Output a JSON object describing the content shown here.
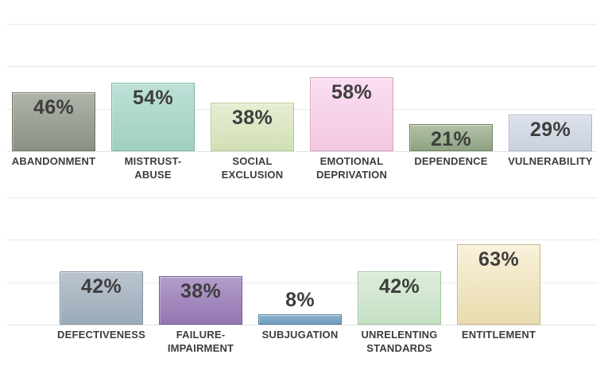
{
  "page": {
    "background_color": "#ffffff",
    "gridline_color": "#e9e9e9",
    "value_label_color": "#3e3e3e",
    "category_label_color": "#3c3c3c"
  },
  "chart_data": [
    {
      "type": "bar",
      "title": "",
      "xlabel": "",
      "ylabel": "",
      "ylim": [
        0,
        100
      ],
      "grid": true,
      "gridlines_pct": [
        100,
        66.7,
        33.3,
        0
      ],
      "legend": null,
      "categories": [
        "ABANDONMENT",
        "MISTRUST-\nABUSE",
        "SOCIAL\nEXCLUSION",
        "EMOTIONAL\nDEPRIVATION",
        "DEPENDENCE",
        "VULNERABILITY"
      ],
      "values": [
        46,
        54,
        38,
        58,
        21,
        29
      ],
      "value_labels": [
        "46%",
        "54%",
        "38%",
        "58%",
        "21%",
        "29%"
      ],
      "bar_colors": [
        {
          "top": "#aeb4a8",
          "bottom": "#899084",
          "border": "#71776b"
        },
        {
          "top": "#bee1d8",
          "bottom": "#9fcfc0",
          "border": "#7db4a5"
        },
        {
          "top": "#e5eed3",
          "bottom": "#d2e0b6",
          "border": "#b5ca92"
        },
        {
          "top": "#fbdef1",
          "bottom": "#f1c8e0",
          "border": "#d5a3c3"
        },
        {
          "top": "#b3c1a6",
          "bottom": "#8fa283",
          "border": "#6d8361"
        },
        {
          "top": "#dde2eb",
          "bottom": "#c8d1df",
          "border": "#a9b5ca"
        }
      ]
    },
    {
      "type": "bar",
      "title": "",
      "xlabel": "",
      "ylabel": "",
      "ylim": [
        0,
        100
      ],
      "grid": true,
      "gridlines_pct": [
        100,
        66.7,
        33.3,
        0
      ],
      "legend": null,
      "categories": [
        "DEFECTIVENESS",
        "FAILURE-\nIMPAIRMENT",
        "SUBJUGATION",
        "UNRELENTING\nSTANDARDS",
        "ENTITLEMENT"
      ],
      "values": [
        42,
        38,
        8,
        42,
        63
      ],
      "value_labels": [
        "42%",
        "38%",
        "8%",
        "42%",
        "63%"
      ],
      "bar_colors": [
        {
          "top": "#bac4ce",
          "bottom": "#9cabb9",
          "border": "#8292a4"
        },
        {
          "top": "#b49ecb",
          "bottom": "#9374b1",
          "border": "#7a5c9d"
        },
        {
          "top": "#8cb2cd",
          "bottom": "#6e9cbe",
          "border": "#537fa5"
        },
        {
          "top": "#ddeedb",
          "bottom": "#c5dfc3",
          "border": "#a2c5a0"
        },
        {
          "top": "#f9f1da",
          "bottom": "#e8dbae",
          "border": "#ccb67c"
        }
      ]
    }
  ]
}
